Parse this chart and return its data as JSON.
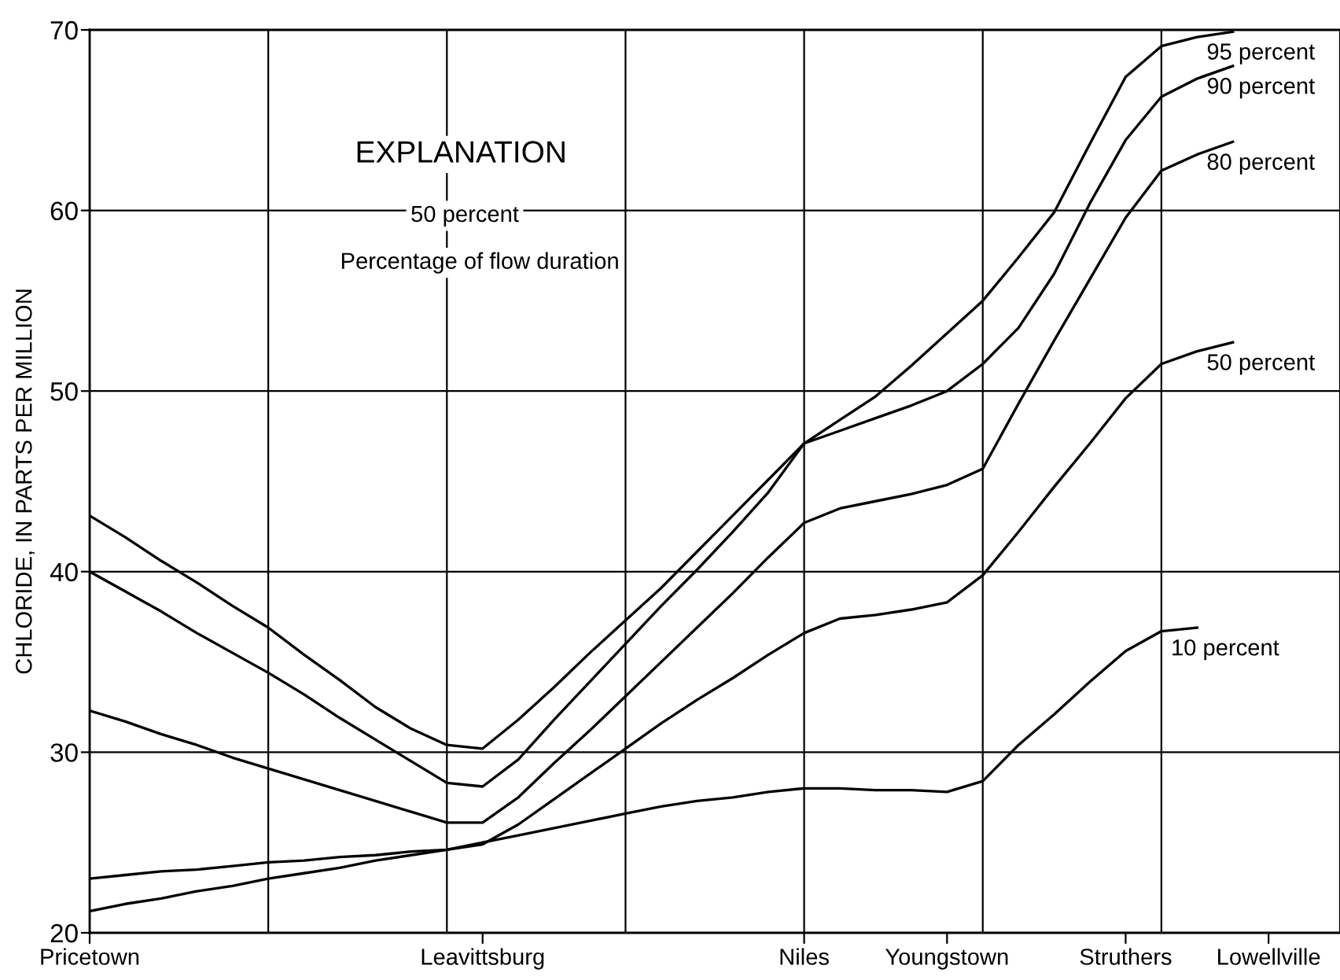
{
  "chart_data": {
    "type": "line",
    "ylabel": "CHLORIDE, IN PARTS PER MILLION",
    "annotations": [
      "EXPLANATION",
      "50 percent",
      "Percentage of flow duration"
    ],
    "categories": [
      "Pricetown",
      null,
      null,
      null,
      null,
      null,
      null,
      null,
      null,
      null,
      null,
      "Leavittsburg",
      null,
      null,
      null,
      null,
      null,
      null,
      null,
      null,
      "Niles",
      null,
      null,
      null,
      "Youngstown",
      null,
      null,
      null,
      null,
      "Struthers",
      null,
      null,
      null,
      "Lowellville",
      null,
      null
    ],
    "ylim": [
      20,
      70
    ],
    "yticks": [
      20,
      30,
      40,
      50,
      60,
      70
    ],
    "grid": true,
    "legend": false,
    "marker": "none",
    "line_style": "solid",
    "series": [
      {
        "name": "95 percent",
        "color": "#000000",
        "values": [
          43.1,
          41.9,
          40.6,
          39.4,
          38.1,
          36.9,
          35.4,
          34.0,
          32.5,
          31.3,
          30.4,
          30.2,
          31.8,
          33.6,
          35.5,
          37.3,
          39.1,
          41.1,
          43.1,
          45.1,
          47.1,
          48.4,
          49.7,
          51.4,
          53.2,
          55.0,
          57.4,
          59.9,
          63.7,
          67.4,
          69.1,
          69.6,
          69.9,
          null,
          null,
          null
        ]
      },
      {
        "name": "90 percent",
        "color": "#000000",
        "values": [
          40.0,
          38.9,
          37.8,
          36.6,
          35.5,
          34.4,
          33.2,
          31.9,
          30.7,
          29.5,
          28.3,
          28.1,
          29.6,
          31.8,
          33.9,
          36.0,
          38.1,
          40.1,
          42.2,
          44.4,
          47.1,
          47.8,
          48.5,
          49.2,
          50.0,
          51.5,
          53.5,
          56.5,
          60.4,
          63.9,
          66.3,
          67.3,
          68.0,
          null,
          null,
          null
        ]
      },
      {
        "name": "80 percent",
        "color": "#000000",
        "values": [
          32.3,
          31.7,
          31.0,
          30.4,
          29.7,
          29.1,
          28.5,
          27.9,
          27.3,
          26.7,
          26.1,
          26.1,
          27.5,
          29.4,
          31.2,
          33.1,
          35.0,
          36.9,
          38.8,
          40.8,
          42.7,
          43.5,
          43.9,
          44.3,
          44.8,
          45.7,
          49.3,
          52.8,
          56.2,
          59.6,
          62.2,
          63.1,
          63.8,
          null,
          null,
          null
        ]
      },
      {
        "name": "50 percent",
        "color": "#000000",
        "values": [
          21.2,
          21.6,
          21.9,
          22.3,
          22.6,
          23.0,
          23.3,
          23.6,
          24.0,
          24.3,
          24.6,
          24.9,
          26.0,
          27.4,
          28.8,
          30.2,
          31.6,
          32.9,
          34.1,
          35.4,
          36.6,
          37.4,
          37.6,
          37.9,
          38.3,
          39.8,
          42.2,
          44.7,
          47.1,
          49.6,
          51.5,
          52.2,
          52.7,
          null,
          null,
          null
        ]
      },
      {
        "name": "10 percent",
        "color": "#000000",
        "values": [
          23.0,
          23.2,
          23.4,
          23.5,
          23.7,
          23.9,
          24.0,
          24.2,
          24.3,
          24.5,
          24.6,
          25.0,
          25.4,
          25.8,
          26.2,
          26.6,
          27.0,
          27.3,
          27.5,
          27.8,
          28.0,
          28.0,
          27.9,
          27.9,
          27.8,
          28.4,
          30.4,
          32.1,
          33.9,
          35.6,
          36.7,
          36.9,
          null,
          null,
          null,
          null
        ]
      }
    ]
  }
}
